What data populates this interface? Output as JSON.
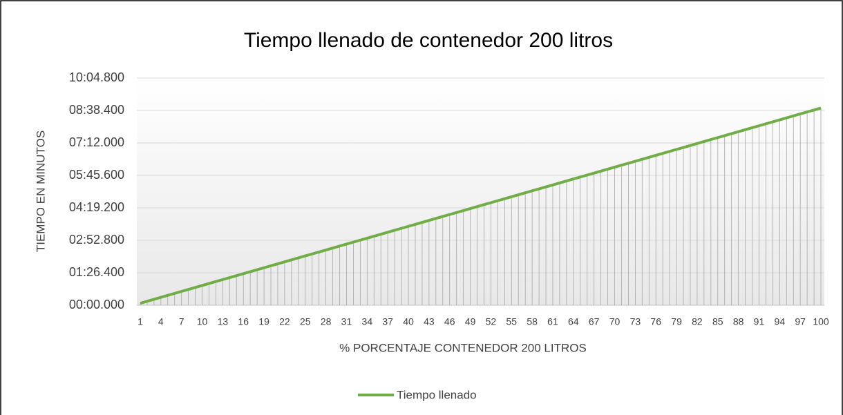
{
  "chart_data": {
    "type": "line",
    "title": "Tiempo llenado de contenedor 200 litros",
    "x_label": "% PORCENTAJE CONTENEDOR 200 LITROS",
    "y_label": "TIEMPO EN MINUTOS",
    "categories": [
      "1",
      null,
      null,
      "4",
      null,
      null,
      "7",
      null,
      null,
      "10",
      null,
      null,
      "13",
      null,
      null,
      "16",
      null,
      null,
      "19",
      null,
      null,
      "22",
      null,
      null,
      "25",
      null,
      null,
      "28",
      null,
      null,
      "31",
      null,
      null,
      "34",
      null,
      null,
      "37",
      null,
      null,
      "40",
      null,
      null,
      "43",
      null,
      null,
      "46",
      null,
      null,
      "49",
      null,
      null,
      "52",
      null,
      null,
      "55",
      null,
      null,
      "58",
      null,
      null,
      "61",
      null,
      null,
      "64",
      null,
      null,
      "67",
      null,
      null,
      "70",
      null,
      null,
      "73",
      null,
      null,
      "76",
      null,
      null,
      "79",
      null,
      null,
      "82",
      null,
      null,
      "85",
      null,
      null,
      "88",
      null,
      null,
      "91",
      null,
      null,
      "94",
      null,
      null,
      "97",
      null,
      null,
      "100"
    ],
    "series": [
      {
        "name": "Tiempo llenado",
        "color": "#70ad47",
        "values": [
          5.25,
          10.5,
          15.75,
          21,
          26.25,
          31.5,
          36.75,
          42,
          47.25,
          52.5,
          57.75,
          63,
          68.25,
          73.5,
          78.75,
          84,
          89.25,
          94.5,
          99.75,
          105,
          110.25,
          115.5,
          120.75,
          126,
          131.25,
          136.5,
          141.75,
          147,
          152.25,
          157.5,
          162.75,
          168,
          173.25,
          178.5,
          183.75,
          189,
          194.25,
          199.5,
          204.75,
          210,
          215.25,
          220.5,
          225.75,
          231,
          236.25,
          241.5,
          246.75,
          252,
          257.25,
          262.5,
          267.75,
          273,
          278.25,
          283.5,
          288.75,
          294,
          299.25,
          304.5,
          309.75,
          315,
          320.25,
          325.5,
          330.75,
          336,
          341.25,
          346.5,
          351.75,
          357,
          362.25,
          367.5,
          372.75,
          378,
          383.25,
          388.5,
          393.75,
          399,
          404.25,
          409.5,
          414.75,
          420,
          425.25,
          430.5,
          435.75,
          441,
          446.25,
          451.5,
          456.75,
          462,
          467.25,
          472.5,
          477.75,
          483,
          488.25,
          493.5,
          498.75,
          504,
          509.25,
          514.5,
          519.75,
          525
        ]
      }
    ],
    "ylim": [
      0,
      604.8
    ],
    "yticks": [
      {
        "value": 0,
        "label": "00:00.000"
      },
      {
        "value": 86.4,
        "label": "01:26.400"
      },
      {
        "value": 172.8,
        "label": "02:52.800"
      },
      {
        "value": 259.2,
        "label": "04:19.200"
      },
      {
        "value": 345.6,
        "label": "05:45.600"
      },
      {
        "value": 432,
        "label": "07:12.000"
      },
      {
        "value": 518.4,
        "label": "08:38.400"
      },
      {
        "value": 604.8,
        "label": "10:04.800"
      }
    ],
    "grid": true,
    "drop_lines": true,
    "legend": "bottom"
  }
}
